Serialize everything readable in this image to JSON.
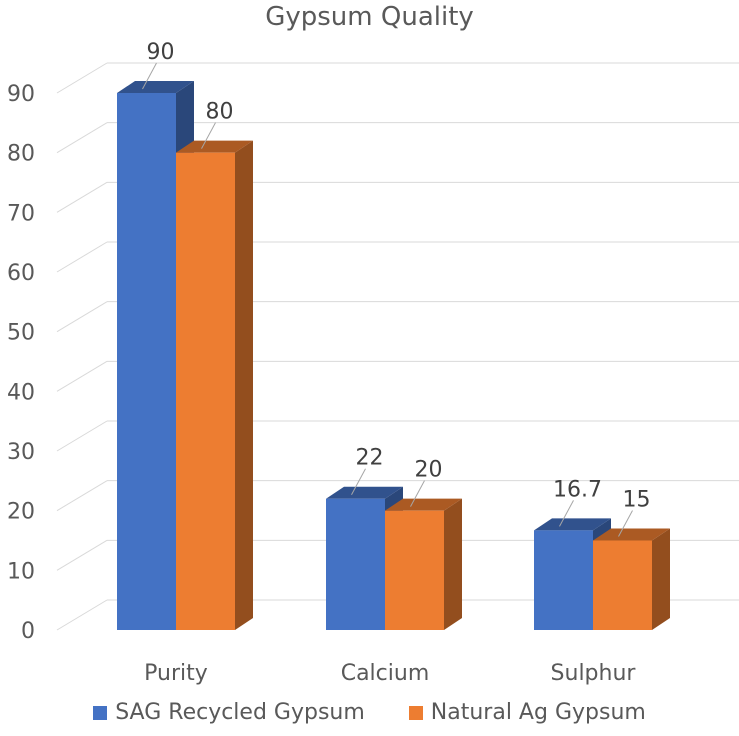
{
  "chart_data": {
    "type": "bar",
    "title": "Gypsum Quality",
    "categories": [
      "Purity",
      "Calcium",
      "Sulphur"
    ],
    "series": [
      {
        "name": "SAG Recycled Gypsum",
        "values": [
          90,
          22,
          16.7
        ],
        "color": "#4472C4"
      },
      {
        "name": "Natural Ag Gypsum",
        "values": [
          80,
          20,
          15
        ],
        "color": "#ED7D31"
      }
    ],
    "ylim": [
      0,
      90
    ],
    "yticks": [
      "0",
      "10",
      "20",
      "30",
      "40",
      "50",
      "60",
      "70",
      "80",
      "90"
    ],
    "data_labels": [
      [
        "90",
        "22",
        "16.7"
      ],
      [
        "80",
        "20",
        "15"
      ]
    ],
    "grid": true,
    "legend_position": "bottom",
    "style": "3d-clustered-column"
  }
}
